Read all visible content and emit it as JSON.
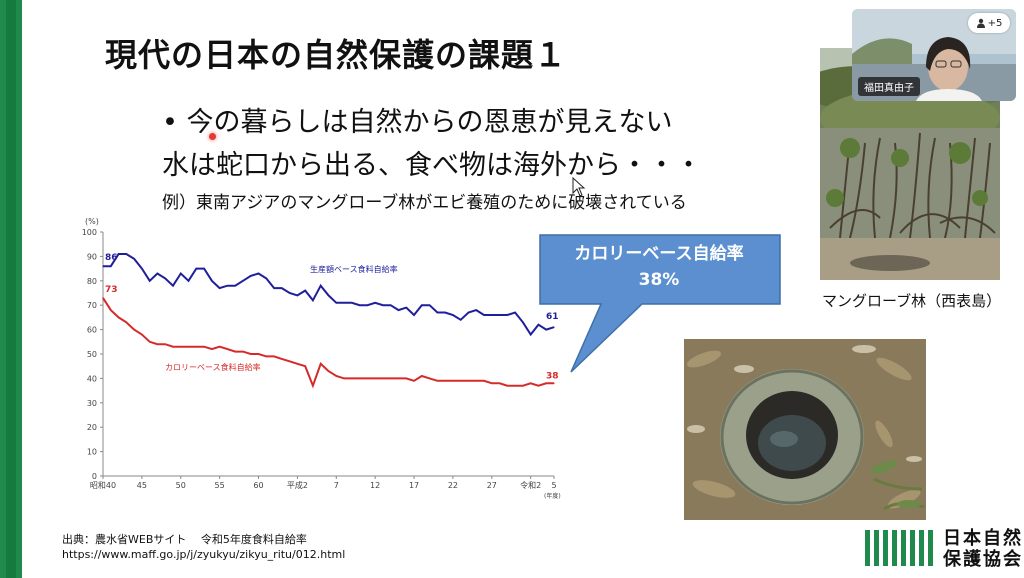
{
  "slide": {
    "title": "現代の日本の自然保護の課題１",
    "bullet1": "• 今の暮らしは自然からの恩恵が見えない",
    "bullet2": "水は蛇口から出る、食べ物は海外から・・・",
    "example": "例）東南アジアのマングローブ林がエビ養殖のために破壊されている",
    "callout_line1": "カロリーベース自給率",
    "callout_line2": "38%",
    "source_line1": "出典：農水省WEBサイト　 令和5年度食料自給率",
    "source_line2": "https://www.maff.go.jp/j/zyukyu/zikyu_ritu/012.html",
    "photo1_caption": "マングローブ林（西表島）",
    "logo_line1": "日本自然",
    "logo_line2": "保護協会"
  },
  "meeting": {
    "participant_name": "福田真由子",
    "participant_count": "+5",
    "participant_icon": "person-icon"
  },
  "colors": {
    "accent_green": "#1f8a4c",
    "callout_blue": "#5b8fcf",
    "series_production": "#1f1f9c",
    "series_calorie": "#d62a2a"
  },
  "chart_data": {
    "type": "line",
    "unit_label": "(%)",
    "x_unit_label": "(年度)",
    "ylim": [
      0,
      100
    ],
    "y_ticks": [
      "0",
      "10",
      "20",
      "30",
      "40",
      "50",
      "60",
      "70",
      "80",
      "90",
      "100"
    ],
    "x_tick_labels": [
      "昭和40",
      "45",
      "50",
      "55",
      "60",
      "平成2",
      "7",
      "12",
      "17",
      "22",
      "27",
      "令和2",
      "5"
    ],
    "x_tick_index": [
      0,
      5,
      10,
      15,
      20,
      25,
      30,
      35,
      40,
      45,
      50,
      55,
      58
    ],
    "series": [
      {
        "name": "生産額ベース食料自給率",
        "start_label": "86",
        "end_label": "61",
        "values": [
          86,
          86,
          91,
          91,
          89,
          85,
          80,
          83,
          81,
          78,
          83,
          80,
          85,
          85,
          80,
          77,
          78,
          78,
          80,
          82,
          83,
          81,
          77,
          77,
          75,
          74,
          76,
          72,
          78,
          74,
          71,
          71,
          71,
          70,
          70,
          71,
          70,
          70,
          68,
          69,
          66,
          70,
          70,
          67,
          67,
          66,
          64,
          67,
          68,
          66,
          66,
          66,
          66,
          67,
          63,
          58,
          62,
          60,
          61
        ]
      },
      {
        "name": "カロリーベース食料自給率",
        "start_label": "73",
        "end_label": "38",
        "values": [
          73,
          68,
          65,
          63,
          60,
          58,
          55,
          54,
          54,
          53,
          53,
          53,
          53,
          53,
          52,
          53,
          52,
          51,
          51,
          50,
          50,
          49,
          49,
          48,
          47,
          46,
          45,
          37,
          46,
          43,
          41,
          40,
          40,
          40,
          40,
          40,
          40,
          40,
          40,
          40,
          39,
          41,
          40,
          39,
          39,
          39,
          39,
          39,
          39,
          39,
          38,
          38,
          37,
          37,
          37,
          38,
          37,
          38,
          38
        ]
      }
    ]
  }
}
